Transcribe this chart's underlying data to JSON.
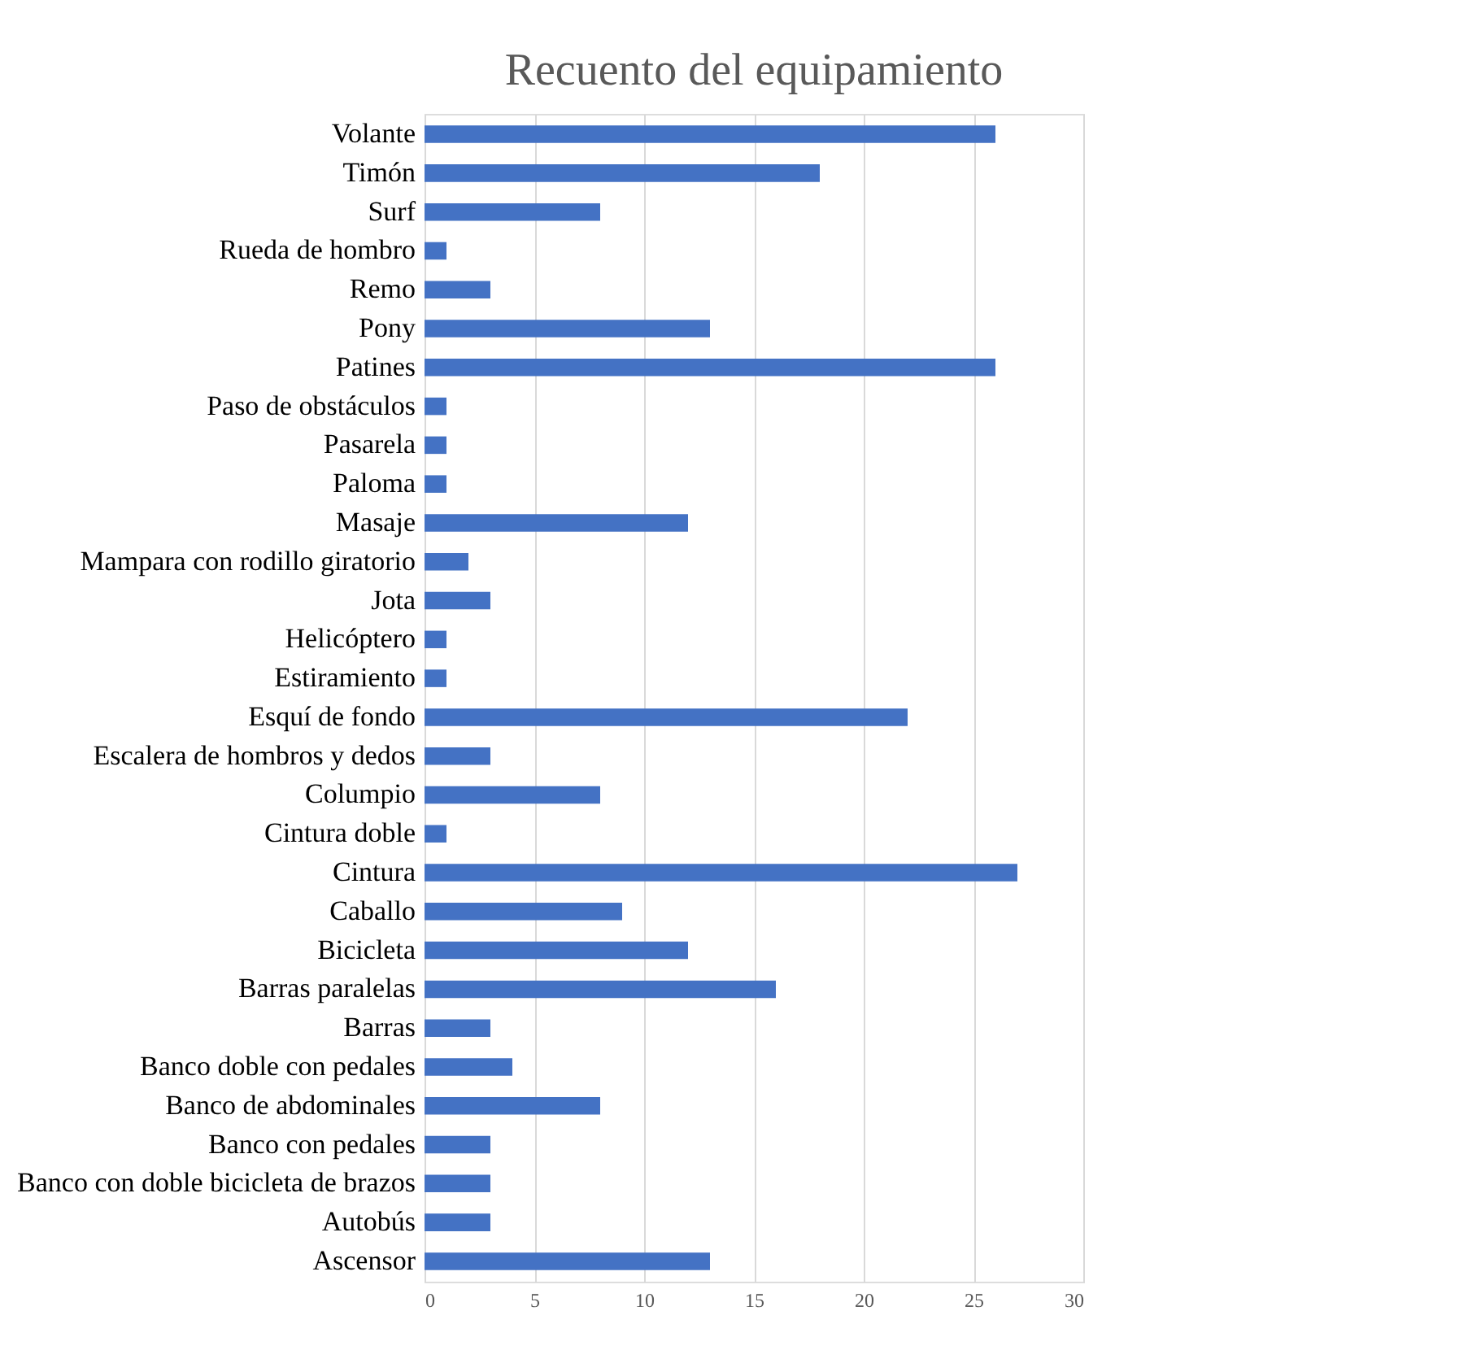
{
  "chart_data": {
    "type": "bar",
    "orientation": "horizontal",
    "title": "Recuento del equipamiento",
    "categories": [
      "Volante",
      "Timón ",
      "Surf",
      "Rueda de hombro",
      "Remo",
      "Pony",
      "Patines",
      "Paso de obstáculos",
      "Pasarela",
      "Paloma",
      "Masaje",
      "Mampara con rodillo giratorio",
      "Jota",
      "Helicóptero",
      "Estiramiento",
      "Esquí de fondo",
      "Escalera de hombros y dedos",
      "Columpio",
      "Cintura doble",
      "Cintura",
      "Caballo",
      "Bicicleta",
      "Barras paralelas",
      "Barras",
      "Banco doble con pedales",
      "Banco de abdominales",
      "Banco con pedales",
      "Banco con doble bicicleta de brazos",
      "Autobús",
      "Ascensor"
    ],
    "values": [
      26,
      18,
      8,
      1,
      3,
      13,
      26,
      1,
      1,
      1,
      12,
      2,
      3,
      1,
      1,
      22,
      3,
      8,
      1,
      27,
      9,
      12,
      16,
      3,
      4,
      8,
      3,
      3,
      3,
      13
    ],
    "color": "#4472c4",
    "xlim": [
      0,
      30
    ],
    "xticks": [
      0,
      5,
      10,
      15,
      20,
      25,
      30
    ],
    "grid": "x"
  }
}
